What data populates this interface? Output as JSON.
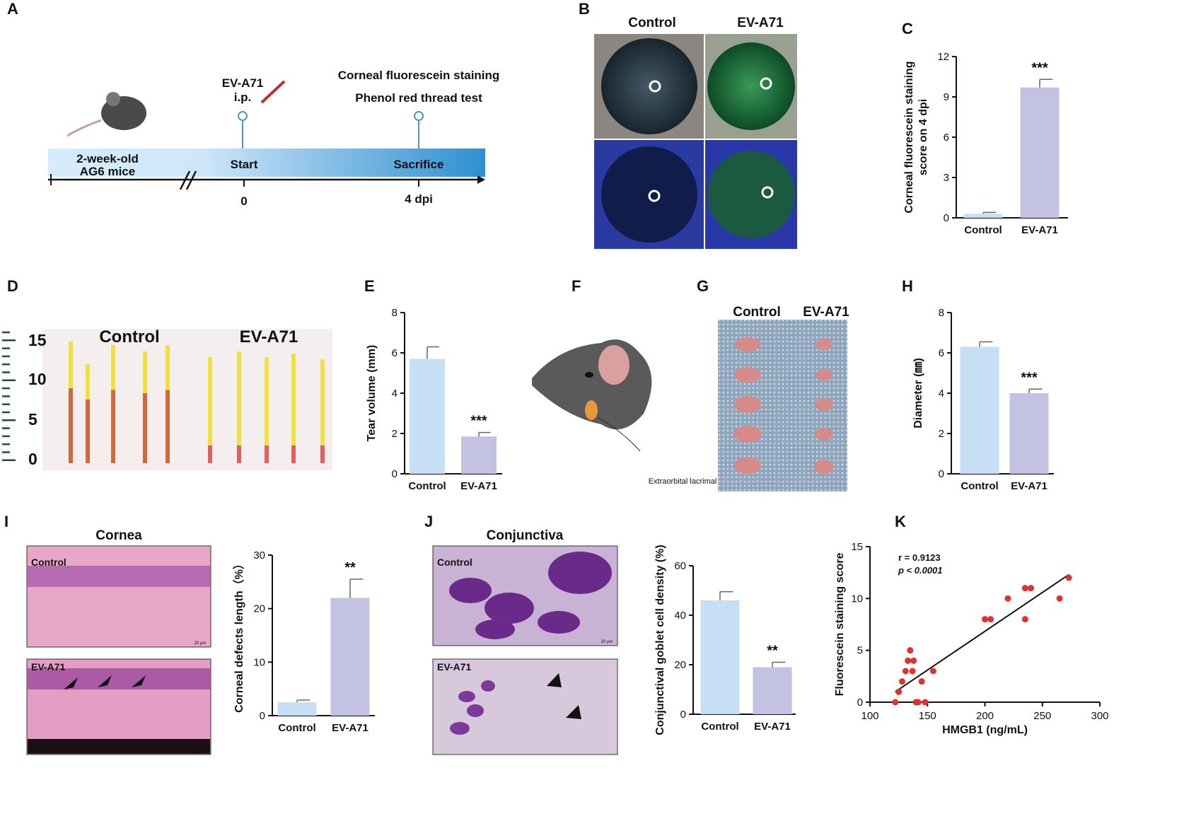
{
  "panel_labels": [
    "A",
    "B",
    "C",
    "D",
    "E",
    "F",
    "G",
    "H",
    "I",
    "J",
    "K"
  ],
  "timeline": {
    "injection": "EV-A71",
    "route": "i.p.",
    "tests": [
      "Corneal fluorescein staining",
      "Phenol red thread test"
    ],
    "animals": [
      "2-week-old",
      "AG6 mice"
    ],
    "start": "Start",
    "end": "Sacrifice",
    "start_time": "0",
    "end_time": "4 dpi"
  },
  "eye_photos": {
    "columns": [
      "Control",
      "EV-A71"
    ]
  },
  "thread_photo": {
    "ruler": [
      15,
      10,
      5,
      0
    ],
    "groups": [
      "Control",
      "EV-A71"
    ]
  },
  "mouse_diagram": {
    "label": "Extraorbital lacrimal gland"
  },
  "gland_photo": {
    "columns": [
      "Control",
      "EV-A71"
    ]
  },
  "cornea_histology": {
    "title": "Cornea",
    "panels": [
      "Control",
      "EV-A71"
    ],
    "scale_bar": "20 μm"
  },
  "conjunctiva_histology": {
    "title": "Conjunctiva",
    "panels": [
      "Control",
      "EV-A71"
    ],
    "scale_bar": "20 μm"
  },
  "chart_data": [
    {
      "type": "bar",
      "ylabel": [
        "Corneal fluorescein staining",
        "score on 4 dpi"
      ],
      "categories": [
        "Control",
        "EV-A71"
      ],
      "values": [
        0.3,
        9.7
      ],
      "errors": [
        0.1,
        0.6
      ],
      "colors": [
        "#c6dff5",
        "#c4c2e2"
      ],
      "ylim": [
        0,
        12
      ],
      "yticks": [
        0,
        3,
        6,
        9,
        12
      ],
      "significance": "***"
    },
    {
      "type": "bar",
      "ylabel": [
        "Tear volume (mm)"
      ],
      "categories": [
        "Control",
        "EV-A71"
      ],
      "values": [
        5.7,
        1.85
      ],
      "errors": [
        0.6,
        0.2
      ],
      "colors": [
        "#c6dff5",
        "#c4c2e2"
      ],
      "ylim": [
        0,
        8
      ],
      "yticks": [
        0,
        2,
        4,
        6,
        8
      ],
      "significance": "***"
    },
    {
      "type": "bar",
      "ylabel": [
        "Diameter (㎜)"
      ],
      "categories": [
        "Control",
        "EV-A71"
      ],
      "values": [
        6.3,
        4.0
      ],
      "errors": [
        0.25,
        0.2
      ],
      "colors": [
        "#c6dff5",
        "#c4c2e2"
      ],
      "ylim": [
        0,
        8
      ],
      "yticks": [
        0,
        2,
        4,
        6,
        8
      ],
      "significance": "***"
    },
    {
      "type": "bar",
      "ylabel": [
        "Corneal defects length（%）"
      ],
      "categories": [
        "Control",
        "EV-A71"
      ],
      "values": [
        2.5,
        22
      ],
      "errors": [
        0.4,
        3.5
      ],
      "colors": [
        "#c6dff5",
        "#c4c2e2"
      ],
      "ylim": [
        0,
        30
      ],
      "yticks": [
        0,
        10,
        20,
        30
      ],
      "significance": "**"
    },
    {
      "type": "bar",
      "ylabel": [
        "Conjunctival goblet cell density (%)"
      ],
      "categories": [
        "Control",
        "EV-A71"
      ],
      "values": [
        46,
        19
      ],
      "errors": [
        3.5,
        2
      ],
      "colors": [
        "#c6dff5",
        "#c4c2e2"
      ],
      "ylim": [
        0,
        60
      ],
      "yticks": [
        0,
        20,
        40,
        60
      ],
      "significance": "**"
    },
    {
      "type": "scatter",
      "xlabel": "HMGB1 (ng/mL)",
      "ylabel": [
        "Fluorescein staining score"
      ],
      "color": "#e03030",
      "x": [
        122,
        125,
        128,
        131,
        133,
        135,
        137,
        138,
        140,
        142,
        145,
        148,
        155,
        200,
        205,
        220,
        235,
        240,
        235,
        265,
        273
      ],
      "values": [
        0,
        1,
        2,
        3,
        4,
        5,
        3,
        4,
        0,
        0,
        2,
        0,
        3,
        8,
        8,
        10,
        11,
        11,
        8,
        10,
        12
      ],
      "fit": {
        "x": [
          122,
          273
        ],
        "y": [
          1,
          12.3
        ]
      },
      "xlim": [
        100,
        300
      ],
      "xticks": [
        100,
        150,
        200,
        250,
        300
      ],
      "ylim": [
        0,
        15
      ],
      "yticks": [
        0,
        5,
        10,
        15
      ],
      "annotations": [
        "r = 0.9123",
        "p < 0.0001"
      ]
    }
  ]
}
